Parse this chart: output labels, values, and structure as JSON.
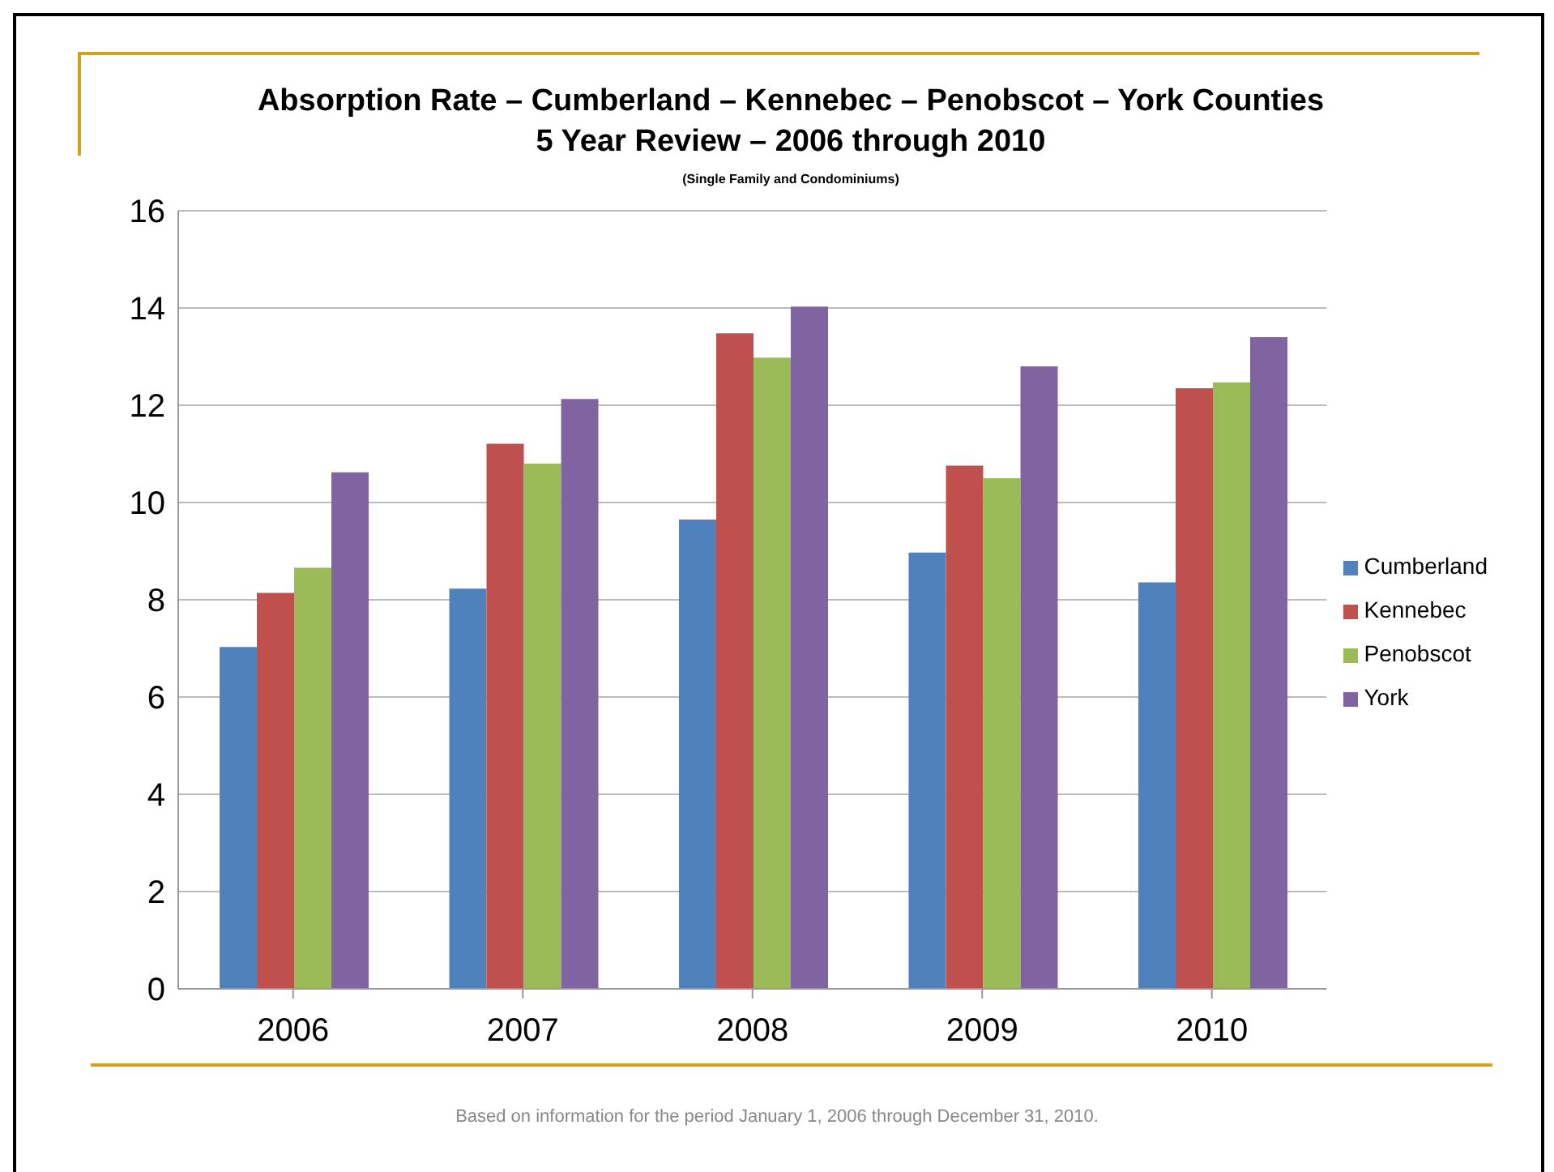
{
  "chart_data": {
    "type": "bar",
    "title": "Absorption Rate – Cumberland – Kennebec – Penobscot – York Counties\n5 Year Review – 2006 through 2010",
    "subtitle": "(Single Family and Condominiums)",
    "categories": [
      "2006",
      "2007",
      "2008",
      "2009",
      "2010"
    ],
    "series": [
      {
        "name": "Cumberland",
        "color": "#4f81bd",
        "values": [
          7.03,
          8.23,
          9.65,
          8.97,
          8.36
        ]
      },
      {
        "name": "Kennebec",
        "color": "#c0504d",
        "values": [
          8.14,
          11.21,
          13.48,
          10.76,
          12.35
        ]
      },
      {
        "name": "Penobscot",
        "color": "#9bbb59",
        "values": [
          8.66,
          10.8,
          12.98,
          10.5,
          12.47
        ]
      },
      {
        "name": "York",
        "color": "#8064a2",
        "values": [
          10.62,
          12.13,
          14.03,
          12.8,
          13.4
        ]
      }
    ],
    "ylim": [
      0,
      16
    ],
    "yticks": [
      0,
      2,
      4,
      6,
      8,
      10,
      12,
      14,
      16
    ],
    "grid": "y",
    "legend": "right",
    "annotations": [
      "Based on information for the period January 1, 2006 through December 31, 2010."
    ]
  }
}
